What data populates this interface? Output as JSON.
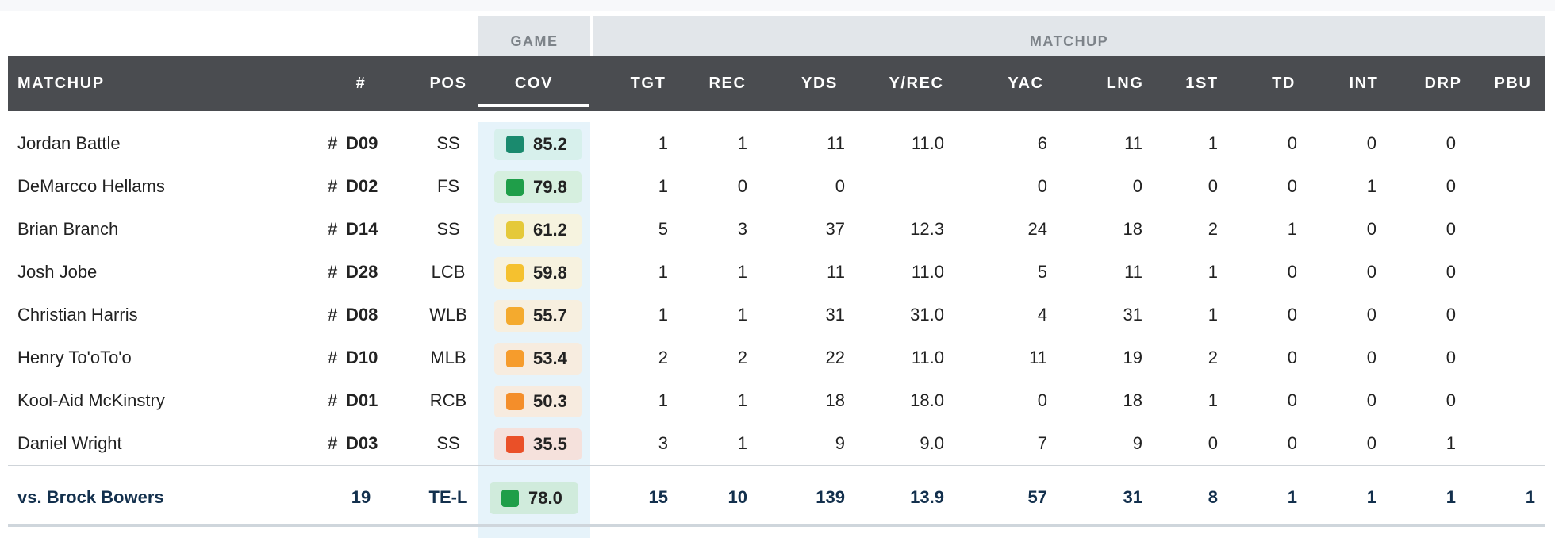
{
  "group_headers": {
    "game": "GAME",
    "matchup": "MATCHUP"
  },
  "columns": {
    "matchup": "MATCHUP",
    "num": "#",
    "pos": "POS",
    "cov": "COV",
    "tgt": "TGT",
    "rec": "REC",
    "yds": "YDS",
    "yrec": "Y/REC",
    "yac": "YAC",
    "lng": "LNG",
    "first": "1ST",
    "td": "TD",
    "int": "INT",
    "drp": "DRP",
    "pbu": "PBU"
  },
  "rows": [
    {
      "name": "Jordan Battle",
      "hash": "#",
      "num": "D09",
      "pos": "SS",
      "cov": "85.2",
      "cov_color": "#1a8a6e",
      "cov_bg": "#d7f0ec",
      "tgt": "1",
      "rec": "1",
      "yds": "11",
      "yrec": "11.0",
      "yac": "6",
      "lng": "11",
      "first": "1",
      "td": "0",
      "int": "0",
      "drp": "0",
      "pbu": ""
    },
    {
      "name": "DeMarcco Hellams",
      "hash": "#",
      "num": "D02",
      "pos": "FS",
      "cov": "79.8",
      "cov_color": "#1f9e49",
      "cov_bg": "#d6efdf",
      "tgt": "1",
      "rec": "0",
      "yds": "0",
      "yrec": "",
      "yac": "0",
      "lng": "0",
      "first": "0",
      "td": "0",
      "int": "1",
      "drp": "0",
      "pbu": ""
    },
    {
      "name": "Brian Branch",
      "hash": "#",
      "num": "D14",
      "pos": "SS",
      "cov": "61.2",
      "cov_color": "#e5c93a",
      "cov_bg": "#f6f3df",
      "tgt": "5",
      "rec": "3",
      "yds": "37",
      "yrec": "12.3",
      "yac": "24",
      "lng": "18",
      "first": "2",
      "td": "1",
      "int": "0",
      "drp": "0",
      "pbu": ""
    },
    {
      "name": "Josh Jobe",
      "hash": "#",
      "num": "D28",
      "pos": "LCB",
      "cov": "59.8",
      "cov_color": "#f5c12f",
      "cov_bg": "#f7f2df",
      "tgt": "1",
      "rec": "1",
      "yds": "11",
      "yrec": "11.0",
      "yac": "5",
      "lng": "11",
      "first": "1",
      "td": "0",
      "int": "0",
      "drp": "0",
      "pbu": ""
    },
    {
      "name": "Christian Harris",
      "hash": "#",
      "num": "D08",
      "pos": "WLB",
      "cov": "55.7",
      "cov_color": "#f4aa2e",
      "cov_bg": "#f7efdf",
      "tgt": "1",
      "rec": "1",
      "yds": "31",
      "yrec": "31.0",
      "yac": "4",
      "lng": "31",
      "first": "1",
      "td": "0",
      "int": "0",
      "drp": "0",
      "pbu": ""
    },
    {
      "name": "Henry To'oTo'o",
      "hash": "#",
      "num": "D10",
      "pos": "MLB",
      "cov": "53.4",
      "cov_color": "#f69c2c",
      "cov_bg": "#f7ecdf",
      "tgt": "2",
      "rec": "2",
      "yds": "22",
      "yrec": "11.0",
      "yac": "11",
      "lng": "19",
      "first": "2",
      "td": "0",
      "int": "0",
      "drp": "0",
      "pbu": ""
    },
    {
      "name": "Kool-Aid McKinstry",
      "hash": "#",
      "num": "D01",
      "pos": "RCB",
      "cov": "50.3",
      "cov_color": "#f48e2a",
      "cov_bg": "#f7ebdf",
      "tgt": "1",
      "rec": "1",
      "yds": "18",
      "yrec": "18.0",
      "yac": "0",
      "lng": "18",
      "first": "1",
      "td": "0",
      "int": "0",
      "drp": "0",
      "pbu": ""
    },
    {
      "name": "Daniel Wright",
      "hash": "#",
      "num": "D03",
      "pos": "SS",
      "cov": "35.5",
      "cov_color": "#ea5028",
      "cov_bg": "#f5e1dc",
      "tgt": "3",
      "rec": "1",
      "yds": "9",
      "yrec": "9.0",
      "yac": "7",
      "lng": "9",
      "first": "0",
      "td": "0",
      "int": "0",
      "drp": "1",
      "pbu": ""
    }
  ],
  "footer": {
    "label": "vs. Brock Bowers",
    "num": "19",
    "pos": "TE-L",
    "cov": "78.0",
    "cov_color": "#1f9e49",
    "cov_bg": "#d0ebdc",
    "tgt": "15",
    "rec": "10",
    "yds": "139",
    "yrec": "13.9",
    "yac": "57",
    "lng": "31",
    "first": "8",
    "td": "1",
    "int": "1",
    "drp": "1",
    "pbu": "1"
  }
}
